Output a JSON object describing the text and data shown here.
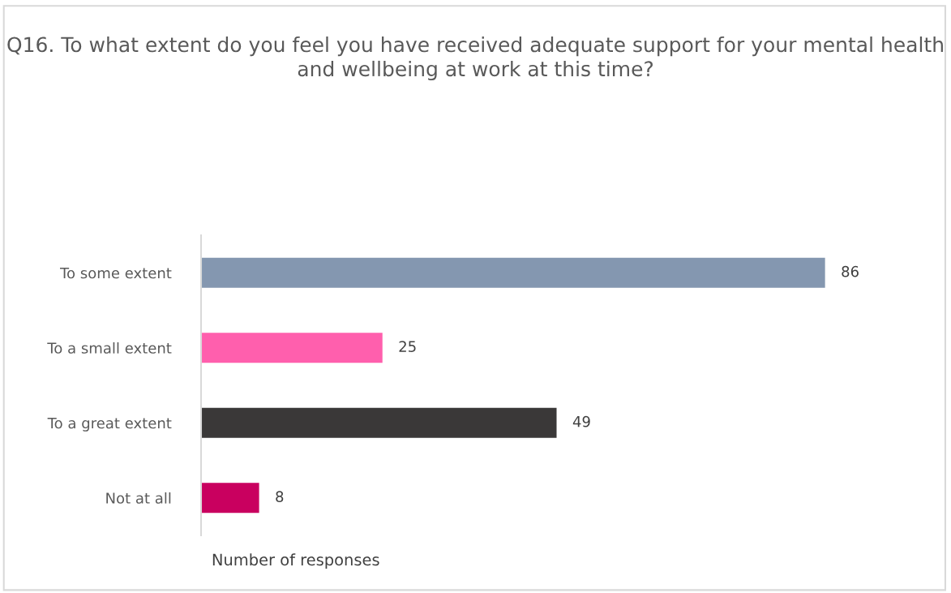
{
  "chart_data": {
    "type": "bar",
    "orientation": "horizontal",
    "title": "Q16. To what extent do you feel you have received adequate support for your mental health and wellbeing at work at this time?",
    "xlabel": "Number of responses",
    "categories": [
      "To some extent",
      "To a small extent",
      "To a great extent",
      "Not at all"
    ],
    "values": [
      86,
      25,
      49,
      8
    ],
    "colors": [
      "#8497b0",
      "#ff5fad",
      "#3a3838",
      "#c9005f"
    ],
    "data_labels": true,
    "grid": false,
    "legend": false
  }
}
